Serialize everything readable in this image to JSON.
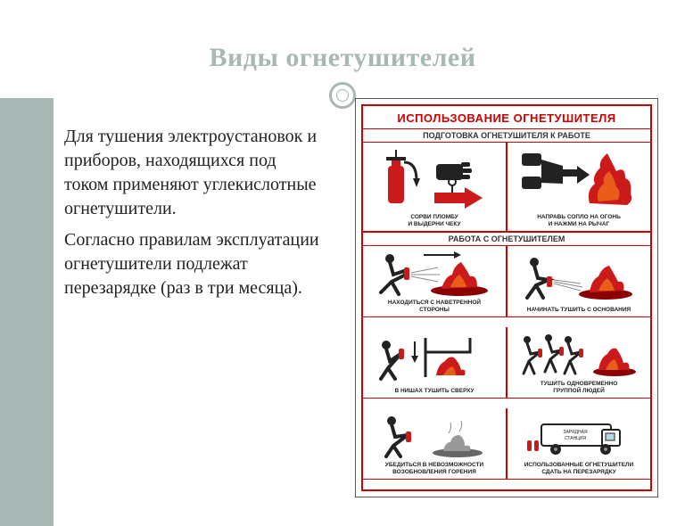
{
  "slide": {
    "title": "Виды огнетушителей",
    "title_color": "#a9b8b5",
    "accent_color": "#a9b8b5",
    "body": {
      "p1": "Для тушения электроустановок и приборов, находящихся под током применяют углекислотные огнетушители.",
      "p2": "Согласно правилам эксплуатации огнетушители подлежат перезарядке (раз в три месяца)."
    }
  },
  "poster": {
    "title": "ИСПОЛЬЗОВАНИЕ ОГНЕТУШИТЕЛЯ",
    "border_color": "#cc0000",
    "section1": "ПОДГОТОВКА ОГНЕТУШИТЕЛЯ К РАБОТЕ",
    "section2": "РАБОТА С ОГНЕТУШИТЕЛЕМ",
    "cells": [
      {
        "cap": "СОРВИ ПЛОМБУ\nИ ВЫДЕРНИ ЧЕКУ"
      },
      {
        "cap": "НАПРАВЬ СОПЛО НА ОГОНЬ\nИ НАЖМИ НА РЫЧАГ"
      },
      {
        "cap": "НАХОДИТЬСЯ С НАВЕТРЕННОЙ\nСТОРОНЫ"
      },
      {
        "cap": "НАЧИНАТЬ ТУШИТЬ С ОСНОВАНИЯ"
      },
      {
        "cap": "В НИШАХ ТУШИТЬ СВЕРХУ"
      },
      {
        "cap": "ТУШИТЬ ОДНОВРЕМЕННО\nГРУППОЙ ЛЮДЕЙ"
      },
      {
        "cap": "УБЕДИТЬСЯ В НЕВОЗМОЖНОСТИ\nВОЗОБНОВЛЕНИЯ ГОРЕНИЯ"
      },
      {
        "cap": "ИСПОЛЬЗОВАННЫЕ ОГНЕТУШИТЕЛИ\nСДАТЬ НА ПЕРЕЗАРЯДКУ"
      }
    ],
    "colors": {
      "red": "#cc1a1a",
      "darkred": "#8b0000",
      "black": "#222222",
      "orange": "#e85d1a",
      "gray": "#888888"
    }
  }
}
